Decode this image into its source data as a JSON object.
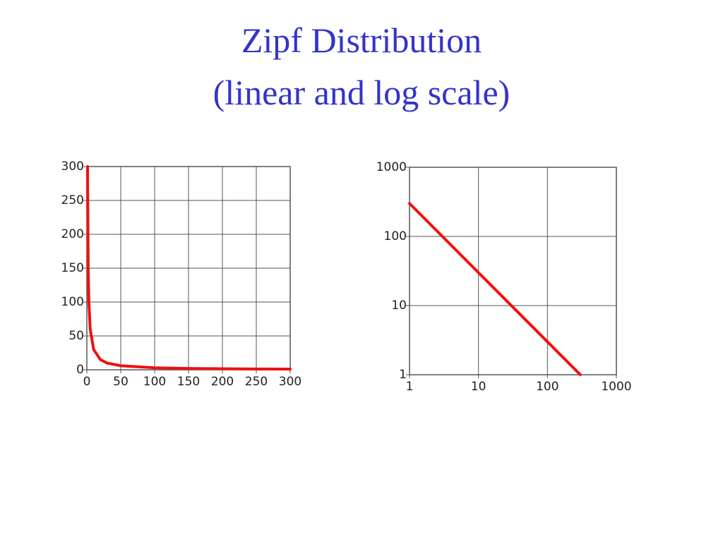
{
  "slide": {
    "title": [
      "Zipf Distribution",
      "(linear and log scale)"
    ]
  },
  "chart_data": [
    {
      "type": "line",
      "color": "#ee1111",
      "grid": true,
      "log": false,
      "x": [
        1,
        2,
        3,
        5,
        10,
        20,
        30,
        50,
        100,
        150,
        200,
        250,
        300
      ],
      "values": [
        300,
        150,
        100,
        60,
        30,
        15,
        10,
        6,
        3,
        2,
        1.5,
        1.2,
        1
      ],
      "xlim": [
        0,
        300
      ],
      "ylim": [
        0,
        300
      ],
      "xticks": [
        0,
        50,
        100,
        150,
        200,
        250,
        300
      ],
      "yticks": [
        0,
        50,
        100,
        150,
        200,
        250,
        300
      ]
    },
    {
      "type": "line",
      "color": "#ee1111",
      "grid": true,
      "log": true,
      "x": [
        1,
        300
      ],
      "values": [
        300,
        1
      ],
      "xlim": [
        1,
        1000
      ],
      "ylim": [
        1,
        1000
      ],
      "xticks": [
        1,
        10,
        100,
        1000
      ],
      "yticks": [
        1,
        10,
        100,
        1000
      ]
    }
  ]
}
